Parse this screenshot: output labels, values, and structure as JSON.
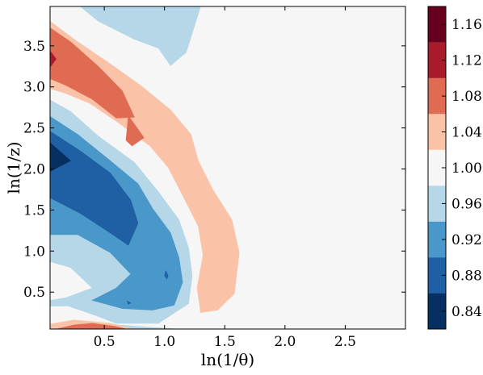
{
  "chart_data": {
    "type": "filled-contour",
    "xlabel": "ln(1/θ)",
    "ylabel": "ln(1/z)",
    "xlim": [
      0.05,
      3.0
    ],
    "ylim": [
      0.05,
      3.98
    ],
    "x_ticks": [
      "0.5",
      "1.0",
      "1.5",
      "2.0",
      "2.5"
    ],
    "y_ticks": [
      "0.5",
      "1.0",
      "1.5",
      "2.0",
      "2.5",
      "3.0",
      "3.5"
    ],
    "colorbar": {
      "levels": [
        0.82,
        0.86,
        0.9,
        0.94,
        0.98,
        1.02,
        1.06,
        1.1,
        1.14,
        1.18
      ],
      "tick_labels": [
        "0.84",
        "0.88",
        "0.92",
        "0.96",
        "1.00",
        "1.04",
        "1.08",
        "1.12",
        "1.16"
      ],
      "colors": [
        "#053061",
        "#1f5fa4",
        "#4a98c9",
        "#b5d7e8",
        "#f6f6f6",
        "#fac3a8",
        "#e06b53",
        "#a91b2b",
        "#67001f"
      ]
    },
    "background_color": "#f6f6f6",
    "regions": [
      {
        "level": 0.96,
        "color": "#b5d7e8",
        "points": [
          [
            0.3,
            3.98
          ],
          [
            1.3,
            3.98
          ],
          [
            1.18,
            3.42
          ],
          [
            1.05,
            3.26
          ],
          [
            0.95,
            3.47
          ],
          [
            0.75,
            3.58
          ],
          [
            0.45,
            3.8
          ]
        ]
      },
      {
        "level": 1.04,
        "color": "#fac3a8",
        "points": [
          [
            0.05,
            3.8
          ],
          [
            0.25,
            3.58
          ],
          [
            0.55,
            3.28
          ],
          [
            0.8,
            3.02
          ],
          [
            1.05,
            2.72
          ],
          [
            1.22,
            2.42
          ],
          [
            1.28,
            2.1
          ],
          [
            1.4,
            1.75
          ],
          [
            1.56,
            1.38
          ],
          [
            1.62,
            0.98
          ],
          [
            1.58,
            0.48
          ],
          [
            1.44,
            0.28
          ],
          [
            1.3,
            0.25
          ],
          [
            1.27,
            0.55
          ],
          [
            1.32,
            0.95
          ],
          [
            1.28,
            1.3
          ],
          [
            1.15,
            1.68
          ],
          [
            1.03,
            2.02
          ],
          [
            0.88,
            2.28
          ],
          [
            0.62,
            2.56
          ],
          [
            0.38,
            2.8
          ],
          [
            0.18,
            2.92
          ],
          [
            0.05,
            2.98
          ]
        ]
      },
      {
        "level": 1.08,
        "color": "#e06b53",
        "points": [
          [
            0.05,
            3.72
          ],
          [
            0.22,
            3.55
          ],
          [
            0.45,
            3.25
          ],
          [
            0.65,
            2.95
          ],
          [
            0.75,
            2.63
          ],
          [
            0.6,
            2.62
          ],
          [
            0.4,
            2.85
          ],
          [
            0.18,
            3.02
          ],
          [
            0.05,
            3.1
          ]
        ]
      },
      {
        "level": 1.08,
        "color": "#e06b53",
        "points": [
          [
            0.7,
            2.65
          ],
          [
            0.83,
            2.38
          ],
          [
            0.73,
            2.28
          ],
          [
            0.68,
            2.35
          ]
        ]
      },
      {
        "level": 1.12,
        "color": "#a91b2b",
        "points": [
          [
            0.05,
            3.44
          ],
          [
            0.1,
            3.34
          ],
          [
            0.05,
            3.24
          ]
        ]
      },
      {
        "level": 0.96,
        "color": "#b5d7e8",
        "points": [
          [
            0.05,
            2.84
          ],
          [
            0.22,
            2.7
          ],
          [
            0.45,
            2.4
          ],
          [
            0.75,
            2.08
          ],
          [
            0.95,
            1.72
          ],
          [
            1.12,
            1.38
          ],
          [
            1.2,
            1.04
          ],
          [
            1.23,
            0.7
          ],
          [
            1.2,
            0.36
          ],
          [
            0.95,
            0.12
          ],
          [
            0.6,
            0.12
          ],
          [
            0.42,
            0.22
          ],
          [
            0.2,
            0.33
          ],
          [
            0.05,
            0.33
          ],
          [
            0.05,
            0.4
          ],
          [
            0.18,
            0.43
          ],
          [
            0.4,
            0.55
          ],
          [
            0.22,
            0.8
          ],
          [
            0.05,
            0.87
          ],
          [
            0.05,
            1.65
          ],
          [
            0.18,
            1.55
          ],
          [
            0.3,
            1.3
          ],
          [
            0.2,
            1.0
          ],
          [
            0.05,
            0.9
          ]
        ]
      },
      {
        "level": 0.92,
        "color": "#4a98c9",
        "points": [
          [
            0.05,
            2.64
          ],
          [
            0.28,
            2.42
          ],
          [
            0.55,
            2.1
          ],
          [
            0.78,
            1.82
          ],
          [
            0.9,
            1.52
          ],
          [
            1.05,
            1.22
          ],
          [
            1.12,
            0.92
          ],
          [
            1.15,
            0.62
          ],
          [
            1.08,
            0.34
          ],
          [
            0.9,
            0.28
          ],
          [
            0.65,
            0.3
          ],
          [
            0.4,
            0.4
          ],
          [
            0.6,
            0.55
          ],
          [
            0.72,
            0.72
          ],
          [
            0.55,
            0.98
          ],
          [
            0.28,
            1.2
          ],
          [
            0.05,
            1.2
          ]
        ]
      },
      {
        "level": 0.88,
        "color": "#1f5fa4",
        "points": [
          [
            0.05,
            2.46
          ],
          [
            0.3,
            2.22
          ],
          [
            0.55,
            1.95
          ],
          [
            0.72,
            1.62
          ],
          [
            0.78,
            1.34
          ],
          [
            0.7,
            1.07
          ],
          [
            0.55,
            1.22
          ],
          [
            0.3,
            1.46
          ],
          [
            0.05,
            1.65
          ]
        ]
      },
      {
        "level": 0.88,
        "color": "#1f5fa4",
        "points": [
          [
            0.37,
            1.78
          ],
          [
            0.39,
            1.7
          ],
          [
            0.37,
            1.65
          ],
          [
            0.36,
            1.7
          ]
        ]
      },
      {
        "level": 0.88,
        "color": "#1f5fa4",
        "points": [
          [
            1.01,
            0.76
          ],
          [
            1.03,
            0.7
          ],
          [
            1.02,
            0.66
          ],
          [
            1.0,
            0.7
          ]
        ]
      },
      {
        "level": 0.88,
        "color": "#1f5fa4",
        "points": [
          [
            0.69,
            0.39
          ],
          [
            0.72,
            0.37
          ],
          [
            0.7,
            0.35
          ]
        ]
      },
      {
        "level": 0.84,
        "color": "#053061",
        "points": [
          [
            0.05,
            2.32
          ],
          [
            0.22,
            2.1
          ],
          [
            0.05,
            1.97
          ]
        ]
      },
      {
        "level": 0.96,
        "color": "#b5d7e8",
        "points": [
          [
            0.05,
            0.1
          ],
          [
            0.6,
            0.1
          ],
          [
            1.12,
            0.05
          ],
          [
            0.05,
            0.05
          ]
        ]
      },
      {
        "level": 1.04,
        "color": "#fac3a8",
        "points": [
          [
            0.05,
            0.11
          ],
          [
            0.25,
            0.16
          ],
          [
            0.55,
            0.12
          ],
          [
            0.75,
            0.05
          ],
          [
            0.05,
            0.05
          ]
        ]
      },
      {
        "level": 1.08,
        "color": "#e06b53",
        "points": [
          [
            0.1,
            0.05
          ],
          [
            0.25,
            0.1
          ],
          [
            0.4,
            0.12
          ],
          [
            0.6,
            0.08
          ],
          [
            0.68,
            0.05
          ]
        ]
      }
    ]
  }
}
